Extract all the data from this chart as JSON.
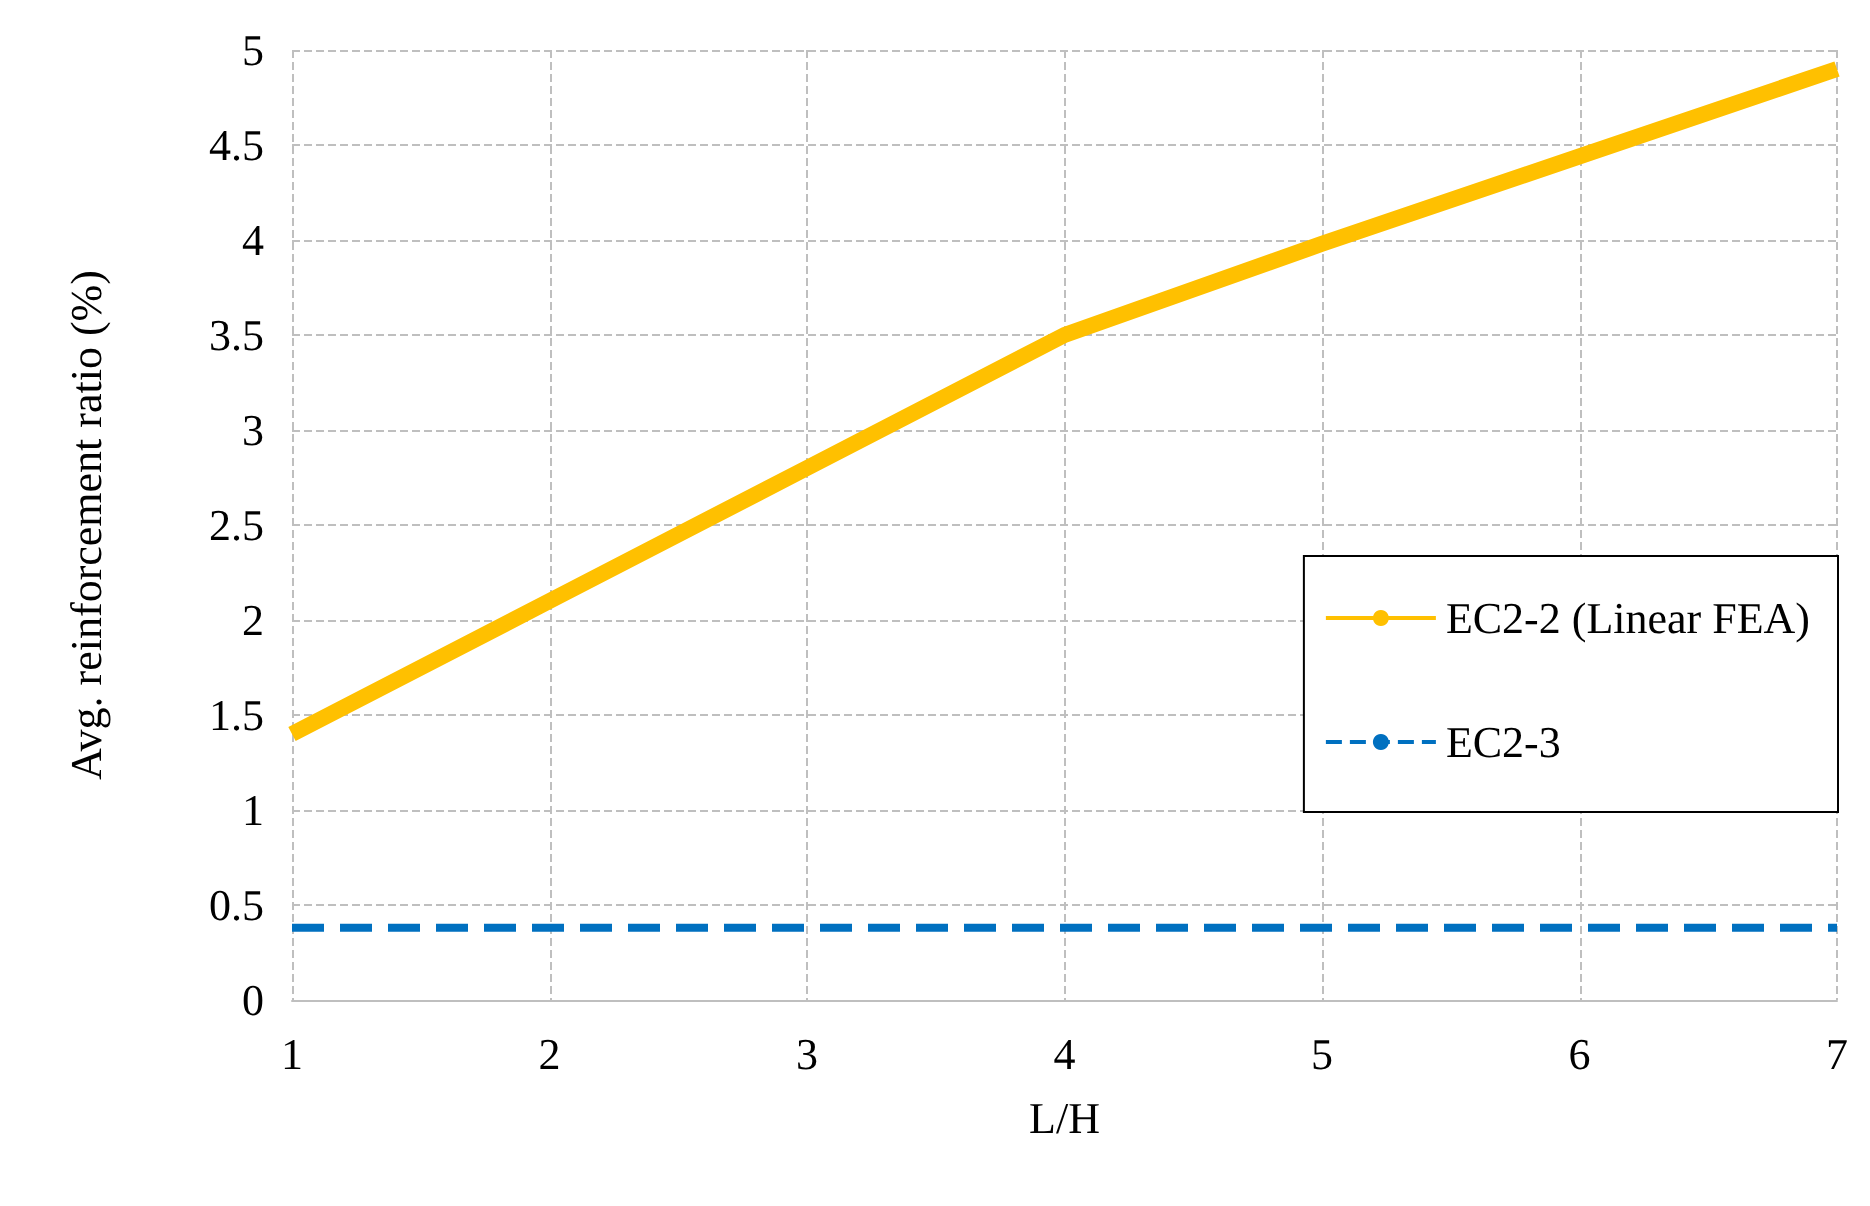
{
  "chart_data": {
    "type": "line",
    "xlabel": "L/H",
    "ylabel": "Avg. reinforcement ratio (%)",
    "x": [
      1,
      2,
      3,
      4,
      5,
      6,
      7
    ],
    "series": [
      {
        "name": "EC2-2 (Linear FEA)",
        "color": "#ffc000",
        "values": [
          1.4,
          2.1,
          2.8,
          3.5,
          3.98,
          4.44,
          4.9
        ],
        "line_style": "solid"
      },
      {
        "name": "EC2-3",
        "color": "#0070c0",
        "values": [
          0.38,
          0.38,
          0.38,
          0.38,
          0.38,
          0.38,
          0.38
        ],
        "line_style": "dashed"
      }
    ],
    "xlim": [
      1,
      7
    ],
    "xticks": [
      1,
      2,
      3,
      4,
      5,
      6,
      7
    ],
    "ylim": [
      0,
      5
    ],
    "yticks": [
      0,
      0.5,
      1,
      1.5,
      2,
      2.5,
      3,
      3.5,
      4,
      4.5,
      5
    ],
    "grid": true,
    "legend": "right",
    "marker": "none"
  }
}
